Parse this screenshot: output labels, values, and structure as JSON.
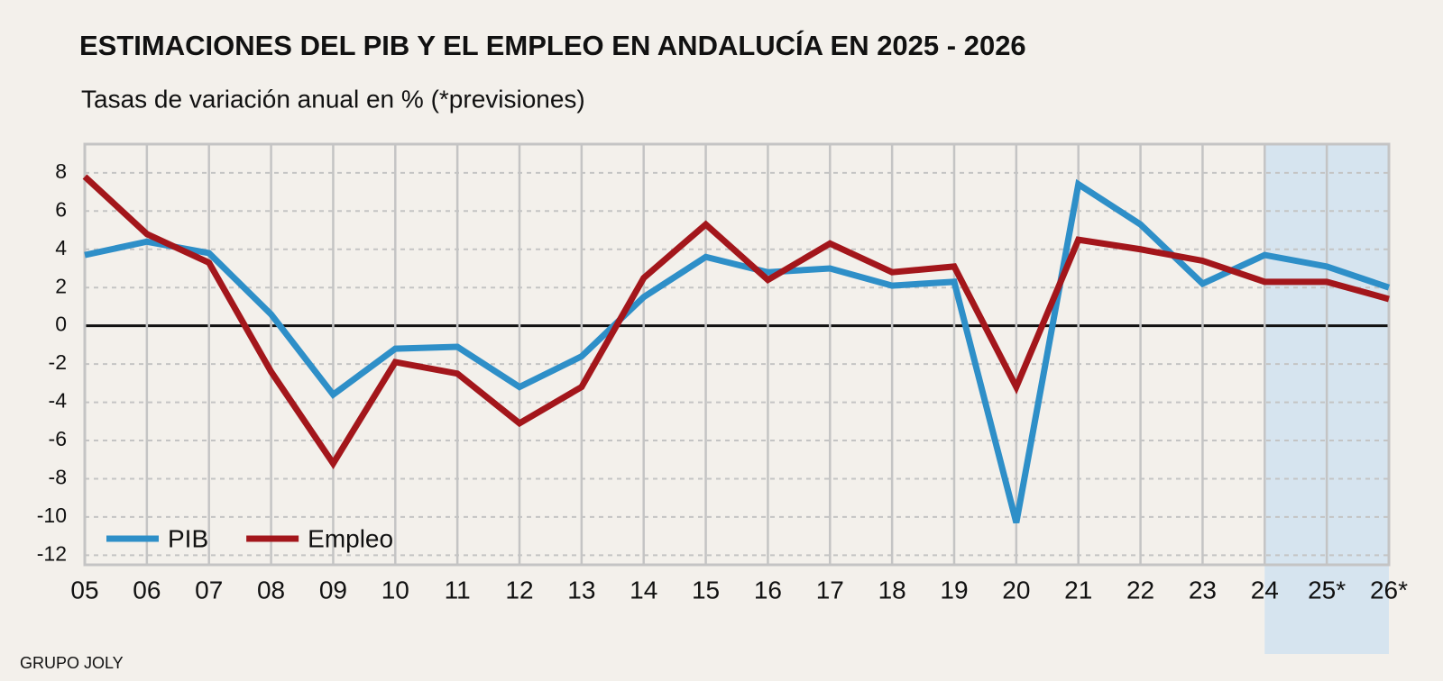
{
  "chart_data": {
    "type": "line",
    "title": "ESTIMACIONES DEL PIB Y EL EMPLEO EN ANDALUCÍA EN 2025 - 2026",
    "subtitle": "Tasas de variación anual en % (*previsiones)",
    "source": "GRUPO JOLY",
    "categories": [
      "05",
      "06",
      "07",
      "08",
      "09",
      "10",
      "11",
      "12",
      "13",
      "14",
      "15",
      "16",
      "17",
      "18",
      "19",
      "20",
      "21",
      "22",
      "23",
      "24",
      "25*",
      "26*"
    ],
    "series": [
      {
        "name": "PIB",
        "color": "#2e8fc8",
        "values": [
          3.7,
          4.4,
          3.8,
          0.6,
          -3.6,
          -1.2,
          -1.1,
          -3.2,
          -1.6,
          1.5,
          3.6,
          2.8,
          3.0,
          2.1,
          2.3,
          -10.3,
          7.4,
          5.3,
          2.2,
          3.7,
          3.1,
          2.0
        ]
      },
      {
        "name": "Empleo",
        "color": "#a3161b",
        "values": [
          7.8,
          4.8,
          3.3,
          -2.4,
          -7.2,
          -1.9,
          -2.5,
          -5.1,
          -3.2,
          2.5,
          5.3,
          2.4,
          4.3,
          2.8,
          3.1,
          -3.2,
          4.5,
          4.0,
          3.4,
          2.3,
          2.3,
          1.4
        ]
      }
    ],
    "ylim": [
      -12.5,
      9.5
    ],
    "yticks": [
      -12,
      -10,
      -8,
      -6,
      -4,
      -2,
      0,
      2,
      4,
      6,
      8
    ],
    "grid": true,
    "legend": "lower left"
  }
}
